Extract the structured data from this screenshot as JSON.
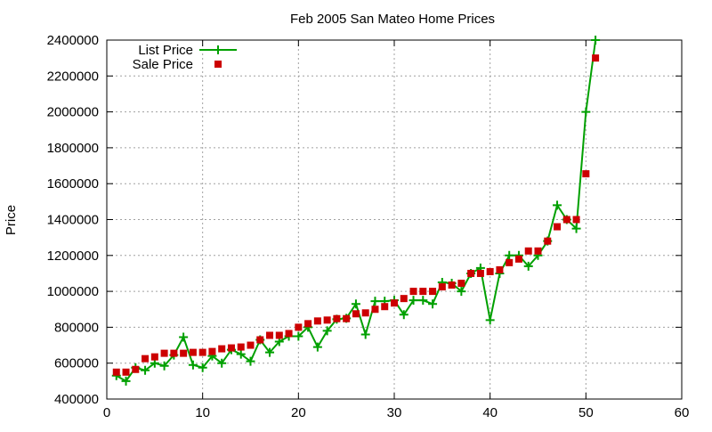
{
  "chart_data": {
    "type": "line",
    "title": "Feb 2005 San Mateo Home Prices",
    "xlabel": "",
    "ylabel": "Price",
    "xlim": [
      0,
      60
    ],
    "ylim": [
      400000,
      2400000
    ],
    "xticks": [
      0,
      10,
      20,
      30,
      40,
      50,
      60
    ],
    "yticks": [
      400000,
      600000,
      800000,
      1000000,
      1200000,
      1400000,
      1600000,
      1800000,
      2000000,
      2200000,
      2400000
    ],
    "grid": true,
    "legend_position": "top-left",
    "x": [
      1,
      2,
      3,
      4,
      5,
      6,
      7,
      8,
      9,
      10,
      11,
      12,
      13,
      14,
      15,
      16,
      17,
      18,
      19,
      20,
      21,
      22,
      23,
      24,
      25,
      26,
      27,
      28,
      29,
      30,
      31,
      32,
      33,
      34,
      35,
      36,
      37,
      38,
      39,
      40,
      41,
      42,
      43,
      44,
      45,
      46,
      47,
      48,
      49,
      50,
      51
    ],
    "series": [
      {
        "name": "List Price",
        "style": "lines+crosses",
        "color": "#00a000",
        "values": [
          530000,
          500000,
          575000,
          560000,
          600000,
          585000,
          645000,
          745000,
          590000,
          575000,
          640000,
          600000,
          675000,
          650000,
          610000,
          730000,
          660000,
          720000,
          750000,
          750000,
          800000,
          690000,
          780000,
          845000,
          850000,
          930000,
          760000,
          945000,
          945000,
          950000,
          870000,
          950000,
          950000,
          930000,
          1050000,
          1045000,
          1000000,
          1100000,
          1130000,
          840000,
          1100000,
          1200000,
          1200000,
          1140000,
          1200000,
          1280000,
          1480000,
          1400000,
          1350000,
          2000000,
          2400000
        ]
      },
      {
        "name": "Sale Price",
        "style": "squares",
        "color": "#cc0000",
        "values": [
          550000,
          550000,
          565000,
          625000,
          635000,
          655000,
          655000,
          655000,
          660000,
          660000,
          665000,
          680000,
          685000,
          690000,
          700000,
          730000,
          755000,
          755000,
          765000,
          800000,
          820000,
          835000,
          840000,
          848000,
          848000,
          875000,
          880000,
          900000,
          915000,
          935000,
          960000,
          1000000,
          1000000,
          1000000,
          1025000,
          1035000,
          1045000,
          1100000,
          1100000,
          1110000,
          1120000,
          1160000,
          1180000,
          1225000,
          1225000,
          1280000,
          1360000,
          1400000,
          1400000,
          1655000,
          2300000
        ]
      }
    ]
  }
}
